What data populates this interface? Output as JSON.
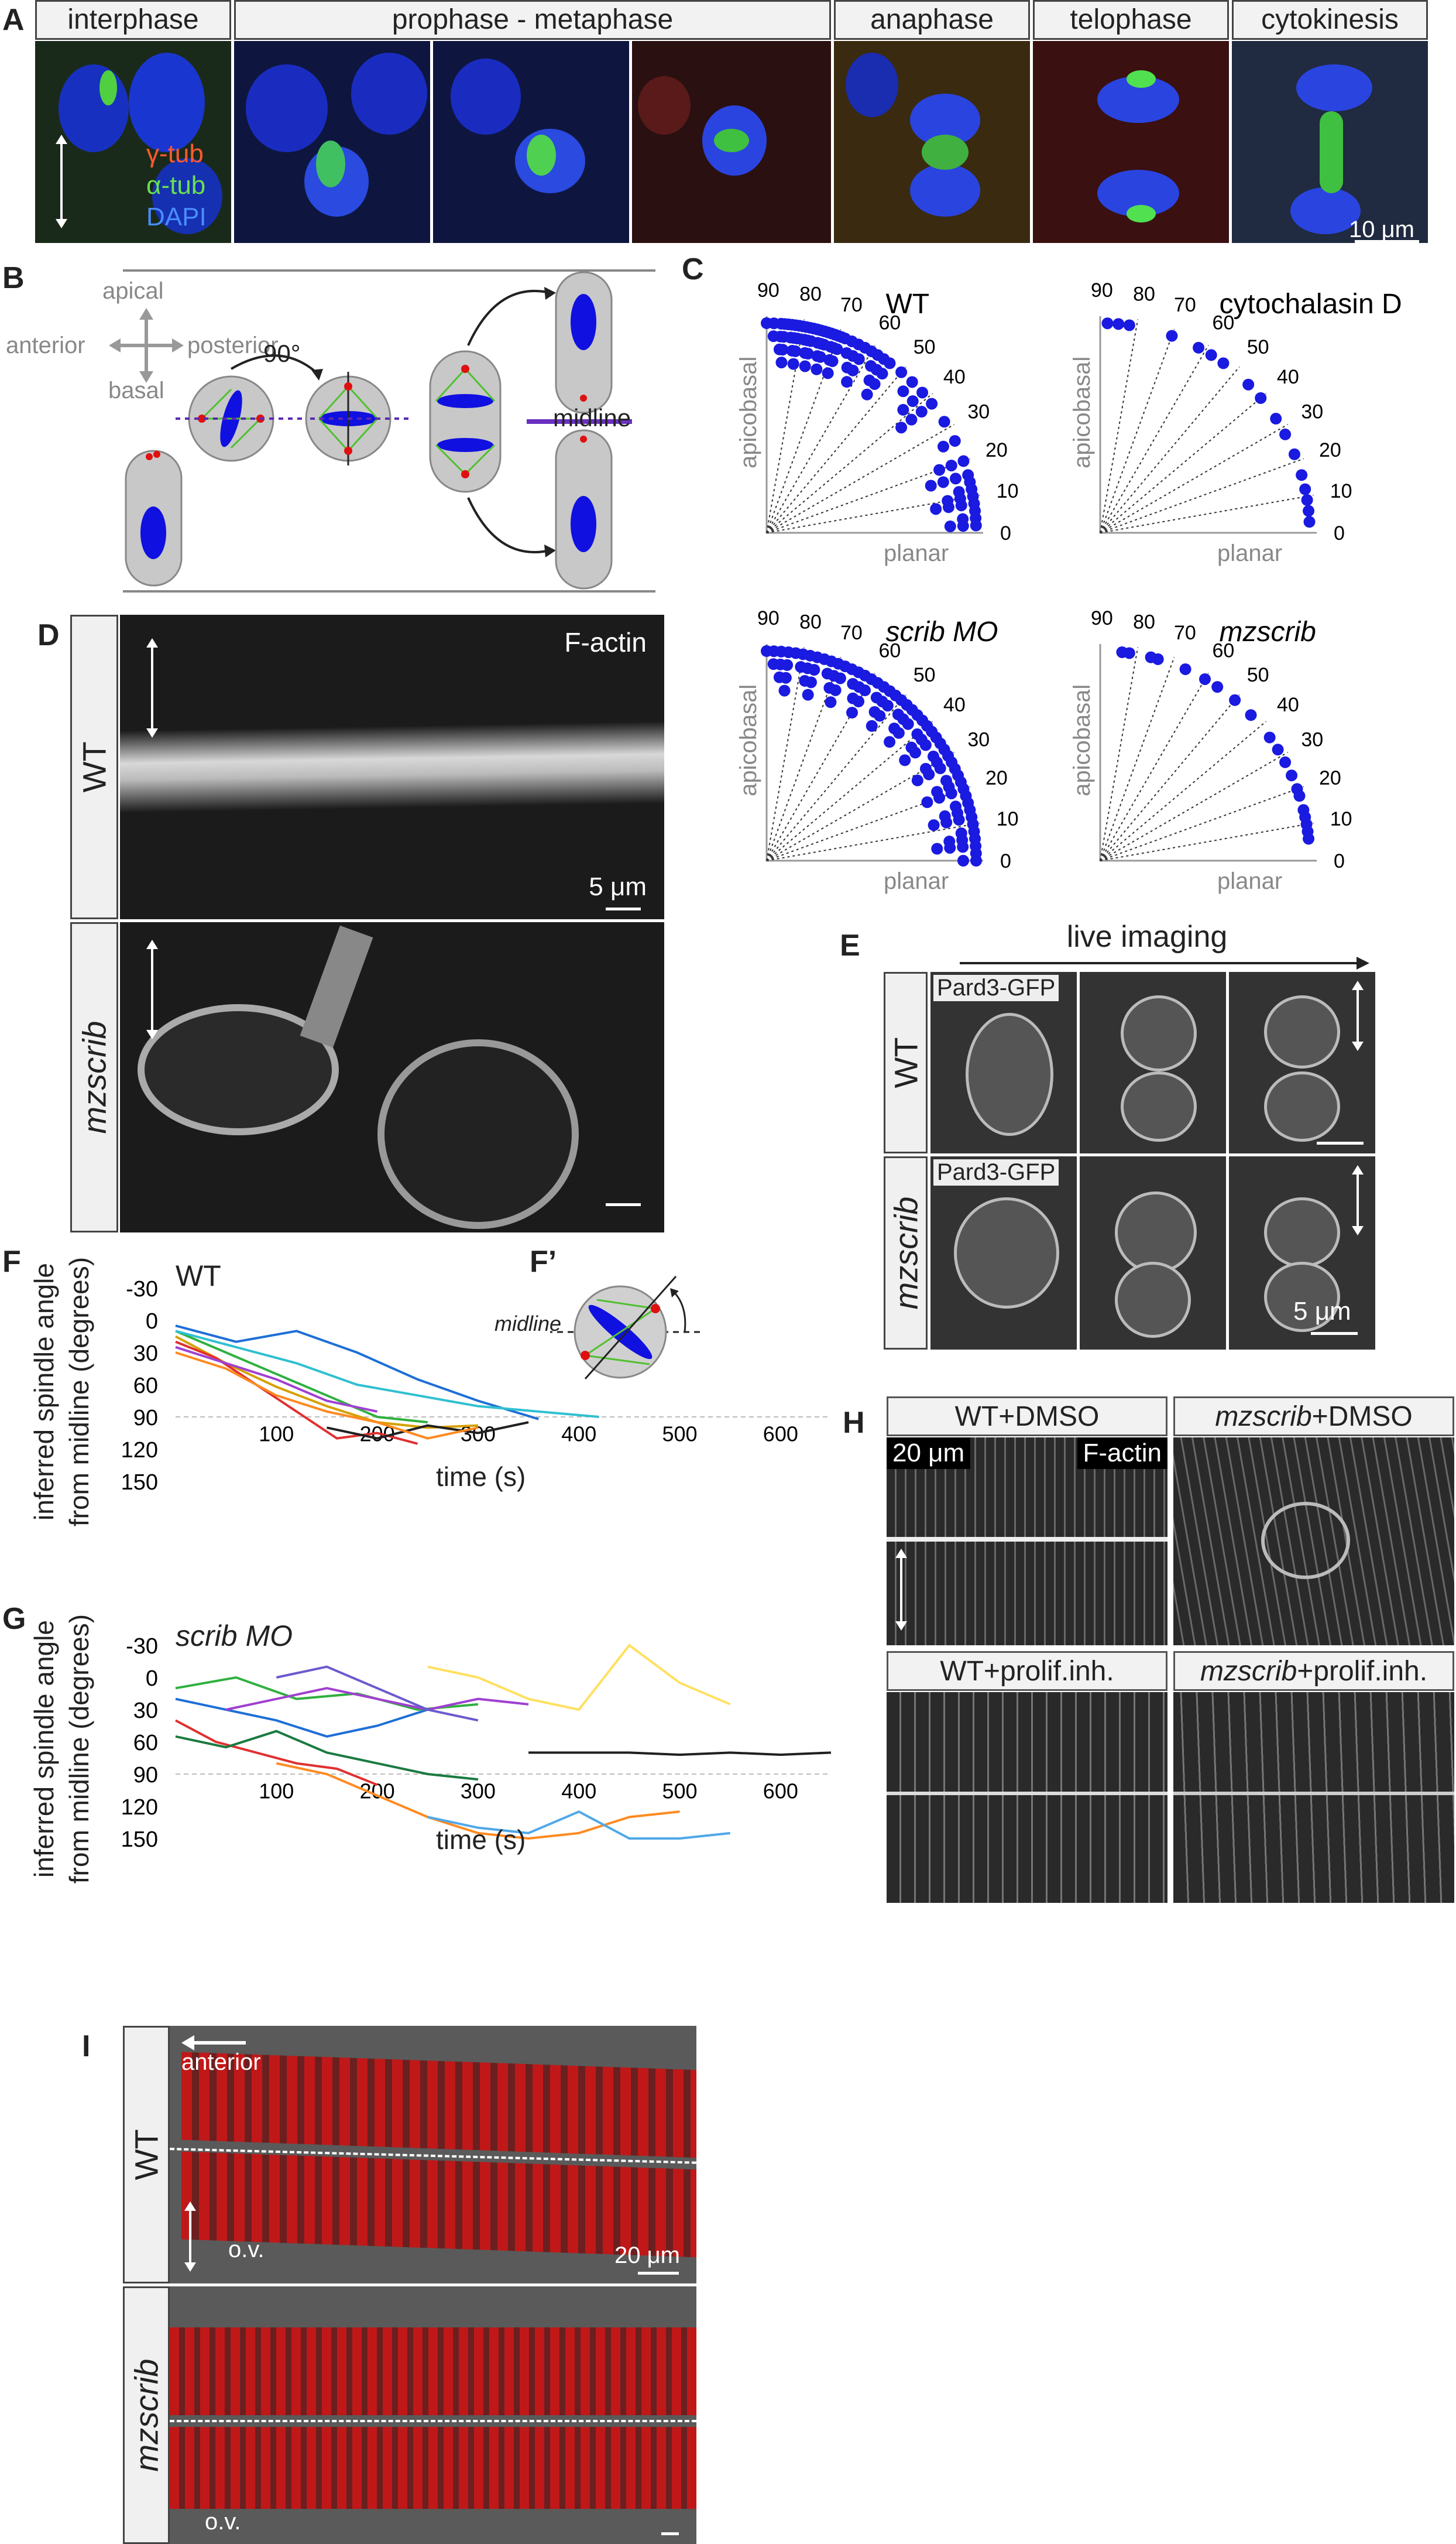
{
  "panelA": {
    "label": "A",
    "headers": [
      "interphase",
      "prophase - metaphase",
      "anaphase",
      "telophase",
      "cytokinesis"
    ],
    "legend": {
      "gamma": "γ-tub",
      "alpha": "α-tub",
      "dapi": "DAPI"
    },
    "scale": "10 μm"
  },
  "panelB": {
    "label": "B",
    "compass": {
      "apical": "apical",
      "basal": "basal",
      "anterior": "anterior",
      "posterior": "posterior"
    },
    "angle": "90°",
    "midline": "midline"
  },
  "panelC": {
    "label": "C",
    "charts": [
      {
        "title": "WT",
        "italic": false
      },
      {
        "title": "cytochalasin D",
        "italic": false
      },
      {
        "title": "scrib MO",
        "italic": true
      },
      {
        "title": "mzscrib",
        "italic": true
      }
    ],
    "ylabel": "apicobasal",
    "xlabel": "planar",
    "ticks": [
      "0",
      "10",
      "20",
      "30",
      "40",
      "50",
      "60",
      "70",
      "80",
      "90"
    ]
  },
  "panelD": {
    "label": "D",
    "rows": [
      "WT",
      "mzscrib"
    ],
    "stain": "F-actin",
    "scale": "5 μm"
  },
  "panelE": {
    "label": "E",
    "header": "live imaging",
    "rows": [
      "WT",
      "mzscrib"
    ],
    "marker": "Pard3-GFP",
    "scale": "5 μm"
  },
  "panelF": {
    "label": "F",
    "title": "WT",
    "inset_label": "F’",
    "midline": "midline"
  },
  "panelG": {
    "label": "G",
    "title": "scrib MO"
  },
  "lineCharts": {
    "ylabel1": "inferred spindle angle",
    "ylabel2": "from midline (degrees)",
    "xlabel": "time (s)",
    "yticks": [
      "-30",
      "0",
      "30",
      "60",
      "90",
      "120",
      "150"
    ],
    "xticks": [
      "100",
      "200",
      "300",
      "400",
      "500",
      "600"
    ]
  },
  "panelH": {
    "label": "H",
    "cells": [
      {
        "a": "WT",
        "b": "+DMSO",
        "italic": false
      },
      {
        "a": "mzscrib",
        "b": "+DMSO",
        "italic": true
      },
      {
        "a": "WT",
        "b": "+prolif.inh.",
        "italic": false
      },
      {
        "a": "mzscrib",
        "b": "+prolif.inh.",
        "italic": true
      }
    ],
    "scale": "20 μm",
    "stain": "F-actin"
  },
  "panelI": {
    "label": "I",
    "rows": [
      "WT",
      "mzscrib"
    ],
    "anterior": "anterior",
    "ov": "o.v.",
    "scale": "20 μm"
  },
  "chart_data": [
    {
      "type": "scatter",
      "title": "WT",
      "xlabel": "planar",
      "ylabel": "apicobasal",
      "coords": "polar",
      "angle_range": [
        0,
        90
      ],
      "description_values_deg": [
        90,
        88,
        86,
        85,
        84,
        83,
        82,
        81,
        80,
        79,
        78,
        77,
        76,
        75,
        74,
        73,
        72,
        71,
        70,
        69,
        68,
        66,
        64,
        62,
        60,
        58,
        56,
        54,
        50,
        46,
        42,
        38,
        32,
        26,
        20,
        16,
        14,
        12,
        10,
        8,
        6,
        4,
        2
      ]
    },
    {
      "type": "scatter",
      "title": "cytochalasin D",
      "xlabel": "planar",
      "ylabel": "apicobasal",
      "coords": "polar",
      "angle_range": [
        0,
        90
      ],
      "description_values_deg": [
        88,
        85,
        82,
        70,
        62,
        58,
        54,
        45,
        40,
        33,
        28,
        22,
        16,
        12,
        9,
        6,
        3
      ]
    },
    {
      "type": "scatter",
      "title": "scrib MO",
      "xlabel": "planar",
      "ylabel": "apicobasal",
      "coords": "polar",
      "angle_range": [
        0,
        90
      ],
      "description_values_deg": [
        90,
        88,
        86,
        84,
        82,
        80,
        78,
        76,
        74,
        72,
        70,
        68,
        66,
        64,
        62,
        60,
        58,
        56,
        54,
        52,
        50,
        48,
        46,
        44,
        42,
        40,
        38,
        36,
        34,
        32,
        30,
        28,
        26,
        24,
        22,
        20,
        18,
        16,
        14,
        12,
        10,
        8,
        6,
        4,
        2,
        0
      ]
    },
    {
      "type": "scatter",
      "title": "mzscrib",
      "xlabel": "planar",
      "ylabel": "apicobasal",
      "coords": "polar",
      "angle_range": [
        0,
        90
      ],
      "description_values_deg": [
        84,
        82,
        76,
        74,
        66,
        60,
        56,
        50,
        44,
        36,
        32,
        28,
        24,
        20,
        18,
        14,
        12,
        10,
        8,
        6
      ]
    },
    {
      "type": "line",
      "title": "WT",
      "xlabel": "time (s)",
      "ylabel": "inferred spindle angle from midline (degrees)",
      "xlim": [
        0,
        650
      ],
      "ylim": [
        -30,
        150
      ],
      "series": [
        {
          "color": "#d6a000",
          "x": [
            0,
            50,
            100,
            150,
            200,
            250,
            300
          ],
          "y": [
            15,
            40,
            62,
            80,
            95,
            100,
            98
          ]
        },
        {
          "color": "#1e6fd6",
          "x": [
            0,
            60,
            120,
            180,
            240,
            300,
            360
          ],
          "y": [
            5,
            20,
            10,
            30,
            55,
            75,
            92
          ]
        },
        {
          "color": "#e03030",
          "x": [
            0,
            40,
            80,
            120,
            160,
            200,
            240
          ],
          "y": [
            20,
            35,
            60,
            85,
            110,
            105,
            115
          ]
        },
        {
          "color": "#30b040",
          "x": [
            0,
            50,
            100,
            150,
            200,
            250
          ],
          "y": [
            10,
            30,
            50,
            70,
            90,
            95
          ]
        },
        {
          "color": "#a040d0",
          "x": [
            0,
            50,
            100,
            150,
            200
          ],
          "y": [
            25,
            40,
            55,
            75,
            85
          ]
        },
        {
          "color": "#30c0d0",
          "x": [
            0,
            60,
            120,
            180,
            240,
            300,
            360,
            420
          ],
          "y": [
            10,
            25,
            40,
            60,
            70,
            80,
            85,
            90
          ]
        },
        {
          "color": "#202020",
          "x": [
            150,
            200,
            250,
            300,
            350
          ],
          "y": [
            100,
            110,
            98,
            105,
            95
          ]
        },
        {
          "color": "#ff8a20",
          "x": [
            0,
            50,
            100,
            150,
            200,
            250,
            300
          ],
          "y": [
            30,
            45,
            70,
            85,
            95,
            110,
            100
          ]
        }
      ]
    },
    {
      "type": "line",
      "title": "scrib MO",
      "xlabel": "time (s)",
      "ylabel": "inferred spindle angle from midline (degrees)",
      "xlim": [
        0,
        650
      ],
      "ylim": [
        -30,
        150
      ],
      "series": [
        {
          "color": "#ffe060",
          "x": [
            250,
            300,
            350,
            400,
            450,
            500,
            550
          ],
          "y": [
            -10,
            0,
            20,
            30,
            -30,
            5,
            25
          ]
        },
        {
          "color": "#202020",
          "x": [
            350,
            400,
            450,
            500,
            550,
            600,
            650
          ],
          "y": [
            70,
            70,
            70,
            72,
            70,
            72,
            70
          ]
        },
        {
          "color": "#ff8a20",
          "x": [
            100,
            150,
            200,
            250,
            300,
            350,
            400,
            450,
            500
          ],
          "y": [
            80,
            90,
            110,
            130,
            145,
            150,
            145,
            130,
            125
          ]
        },
        {
          "color": "#50a8e8",
          "x": [
            250,
            300,
            350,
            400,
            450,
            500,
            550
          ],
          "y": [
            130,
            140,
            145,
            125,
            150,
            150,
            145
          ]
        },
        {
          "color": "#1e6fd6",
          "x": [
            0,
            50,
            100,
            150,
            200,
            250
          ],
          "y": [
            20,
            30,
            40,
            55,
            45,
            30
          ]
        },
        {
          "color": "#30b040",
          "x": [
            0,
            60,
            120,
            180,
            240,
            300
          ],
          "y": [
            10,
            0,
            20,
            15,
            30,
            25
          ]
        },
        {
          "color": "#e03030",
          "x": [
            0,
            40,
            80,
            120,
            160,
            200
          ],
          "y": [
            40,
            60,
            70,
            80,
            85,
            100
          ]
        },
        {
          "color": "#a040d0",
          "x": [
            50,
            100,
            150,
            200,
            250,
            300,
            350
          ],
          "y": [
            30,
            20,
            10,
            20,
            30,
            20,
            25
          ]
        },
        {
          "color": "#1a7a40",
          "x": [
            0,
            50,
            100,
            150,
            200,
            250,
            300
          ],
          "y": [
            55,
            65,
            50,
            70,
            80,
            90,
            95
          ]
        },
        {
          "color": "#6a5acd",
          "x": [
            100,
            150,
            200,
            250,
            300
          ],
          "y": [
            0,
            -10,
            10,
            30,
            40
          ]
        }
      ]
    }
  ]
}
